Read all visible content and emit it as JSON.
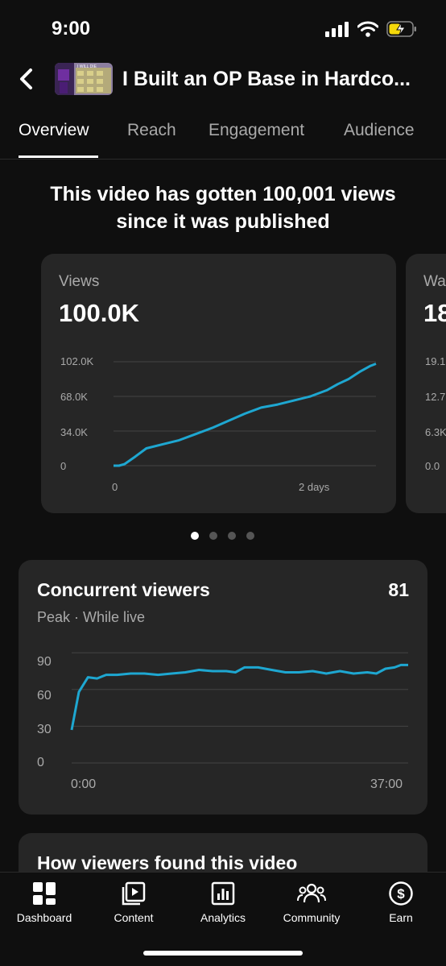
{
  "status_bar": {
    "time": "9:00"
  },
  "header": {
    "title": "I Built an OP Base in Hardco...",
    "thumbnail_caption": "I WILL DIE"
  },
  "tabs": [
    {
      "label": "Overview",
      "active": true
    },
    {
      "label": "Reach",
      "active": false
    },
    {
      "label": "Engagement",
      "active": false
    },
    {
      "label": "Audience",
      "active": false
    }
  ],
  "headline": {
    "line1": "This video has gotten 100,001 views",
    "line2": "since it was published"
  },
  "views_card": {
    "label": "Views",
    "value": "100.0K",
    "chart_data": {
      "type": "line",
      "x_ticks": [
        "0",
        "2 days"
      ],
      "y_ticks": [
        "0",
        "34.0K",
        "68.0K",
        "102.0K"
      ],
      "ylim": [
        0,
        102000
      ],
      "xlim": [
        0,
        2.4
      ],
      "series": [
        {
          "values": [
            [
              0,
              0
            ],
            [
              0.05,
              0
            ],
            [
              0.1,
              1500
            ],
            [
              0.2,
              9000
            ],
            [
              0.3,
              17000
            ],
            [
              0.45,
              21000
            ],
            [
              0.6,
              25000
            ],
            [
              0.75,
              31000
            ],
            [
              0.9,
              37000
            ],
            [
              1.05,
              44000
            ],
            [
              1.2,
              51000
            ],
            [
              1.35,
              57000
            ],
            [
              1.5,
              60000
            ],
            [
              1.65,
              64000
            ],
            [
              1.8,
              68000
            ],
            [
              1.95,
              74000
            ],
            [
              2.05,
              80000
            ],
            [
              2.15,
              85000
            ],
            [
              2.25,
              92000
            ],
            [
              2.35,
              98000
            ],
            [
              2.4,
              100001
            ]
          ]
        }
      ],
      "grid": true
    }
  },
  "watch_card_peek": {
    "label_partial": "Wa",
    "value_partial": "18",
    "y_ticks": [
      "0.0",
      "6.3K",
      "12.7",
      "19.1"
    ]
  },
  "pager": {
    "count": 4,
    "active_index": 0
  },
  "concurrent_viewers": {
    "title": "Concurrent viewers",
    "value": "81",
    "subtitle": "Peak · While live",
    "chart_data": {
      "type": "line",
      "x_ticks": [
        "0:00",
        "37:00"
      ],
      "y_ticks": [
        "0",
        "30",
        "60",
        "90"
      ],
      "ylim": [
        0,
        100
      ],
      "xlim": [
        0,
        37
      ],
      "series": [
        {
          "values": [
            [
              0,
              27
            ],
            [
              0.8,
              58
            ],
            [
              1.8,
              70
            ],
            [
              2.8,
              69
            ],
            [
              3.8,
              72
            ],
            [
              5,
              72
            ],
            [
              6.5,
              73
            ],
            [
              8,
              73
            ],
            [
              9.5,
              72
            ],
            [
              11,
              73
            ],
            [
              12.5,
              74
            ],
            [
              14,
              76
            ],
            [
              15.5,
              75
            ],
            [
              17,
              75
            ],
            [
              18,
              74
            ],
            [
              19,
              78
            ],
            [
              20.5,
              78
            ],
            [
              22,
              76
            ],
            [
              23.5,
              74
            ],
            [
              25,
              74
            ],
            [
              26.5,
              75
            ],
            [
              28,
              73
            ],
            [
              29.5,
              75
            ],
            [
              31,
              73
            ],
            [
              32.5,
              74
            ],
            [
              33.5,
              73
            ],
            [
              34.5,
              77
            ],
            [
              35.5,
              78
            ],
            [
              36.2,
              80
            ],
            [
              37,
              80
            ]
          ]
        }
      ],
      "grid": true
    }
  },
  "found_card": {
    "title": "How viewers found this video"
  },
  "bottom_nav": [
    {
      "label": "Dashboard",
      "icon": "dashboard-icon"
    },
    {
      "label": "Content",
      "icon": "content-icon"
    },
    {
      "label": "Analytics",
      "icon": "analytics-icon"
    },
    {
      "label": "Community",
      "icon": "community-icon"
    },
    {
      "label": "Earn",
      "icon": "earn-icon"
    }
  ],
  "colors": {
    "accent": "#1ea7d1",
    "background": "#0f0f0f",
    "card": "#262626",
    "muted": "#aaaaaa"
  }
}
